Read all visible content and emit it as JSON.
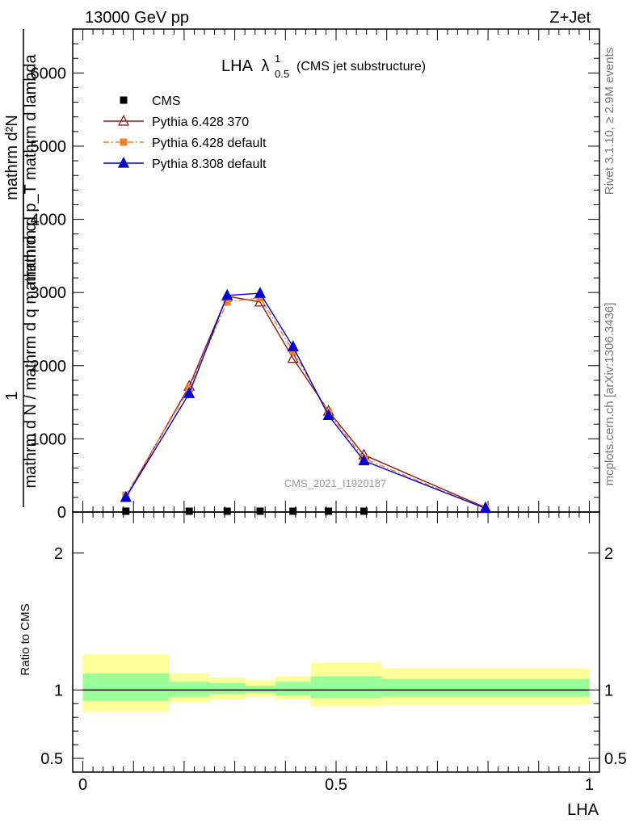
{
  "header": {
    "left": "13000 GeV pp",
    "right": "Z+Jet"
  },
  "side_labels": {
    "rivet": "Rivet 3.1.10, ≥ 2.9M events",
    "mcplots": "mcplots.cern.ch [arXiv:1306.3436]"
  },
  "watermark": "CMS_2021_I1920187",
  "chart_data": [
    {
      "type": "line",
      "title": "LHA",
      "title_sup": "1",
      "title_sub": "0.5",
      "subtitle": "(CMS jet substructure)",
      "ylabel_numerator": "mathrm d²N",
      "ylabel_denominator": "mathrm d p_T mathrm d lambda",
      "ylabel_outer_numerator": "1",
      "ylabel_outer_denominator": "mathrm d N / mathrm d q mathrm d q",
      "xlim": [
        -0.02,
        1.02
      ],
      "ylim": [
        0,
        6600
      ],
      "yticks": [
        0,
        1000,
        2000,
        3000,
        4000,
        5000,
        6000
      ],
      "ytick_labels": [
        "0",
        "1000",
        "2000",
        "3000",
        "4000",
        "5000",
        "6000"
      ],
      "legend_position": "top-left",
      "series": [
        {
          "name": "CMS",
          "color": "#000000",
          "marker": "square",
          "x": [
            0.085,
            0.21,
            0.285,
            0.35,
            0.415,
            0.485,
            0.555
          ],
          "y": [
            0,
            0,
            0,
            0,
            0,
            0,
            0
          ]
        },
        {
          "name": "Pythia 6.428 370",
          "color": "#8b1a1a",
          "marker": "open-triangle",
          "dash": "solid",
          "x": [
            0.085,
            0.21,
            0.285,
            0.35,
            0.415,
            0.485,
            0.555,
            0.795
          ],
          "y": [
            200,
            1720,
            2950,
            2870,
            2100,
            1380,
            780,
            60
          ]
        },
        {
          "name": "Pythia 6.428 default",
          "color": "#f07f2e",
          "marker": "square",
          "dash": "dashdot",
          "x": [
            0.085,
            0.21,
            0.285,
            0.35,
            0.415,
            0.485,
            0.555,
            0.795
          ],
          "y": [
            230,
            1690,
            2870,
            2930,
            2200,
            1360,
            730,
            50
          ]
        },
        {
          "name": "Pythia 8.308 default",
          "color": "#0000d0",
          "marker": "triangle",
          "dash": "solid",
          "x": [
            0.085,
            0.21,
            0.285,
            0.35,
            0.415,
            0.485,
            0.555,
            0.795
          ],
          "y": [
            200,
            1620,
            2960,
            2990,
            2260,
            1320,
            700,
            50
          ]
        }
      ]
    },
    {
      "type": "area",
      "ylabel": "Ratio to CMS",
      "xlabel": "LHA",
      "xlim": [
        -0.02,
        1.02
      ],
      "ylim": [
        0.4,
        2.3
      ],
      "yticks": [
        0.5,
        1,
        2
      ],
      "ytick_labels": [
        "0.5",
        "1",
        "2"
      ],
      "xticks": [
        0,
        0.5,
        1
      ],
      "xtick_labels": [
        "0",
        "0.5",
        "1"
      ],
      "bins": [
        0,
        0.17,
        0.25,
        0.32,
        0.38,
        0.45,
        0.59,
        1.0
      ],
      "band_outer": [
        [
          0.84,
          1.26
        ],
        [
          0.91,
          1.12
        ],
        [
          0.93,
          1.09
        ],
        [
          0.95,
          1.07
        ],
        [
          0.93,
          1.1
        ],
        [
          0.88,
          1.2
        ],
        [
          0.89,
          1.16
        ]
      ],
      "band_inner": [
        [
          0.92,
          1.12
        ],
        [
          0.95,
          1.06
        ],
        [
          0.97,
          1.05
        ],
        [
          0.98,
          1.03
        ],
        [
          0.96,
          1.06
        ],
        [
          0.94,
          1.1
        ],
        [
          0.95,
          1.08
        ]
      ],
      "band_outer_color": "#ffff99",
      "band_inner_color": "#99ff99",
      "reference": 1
    }
  ]
}
